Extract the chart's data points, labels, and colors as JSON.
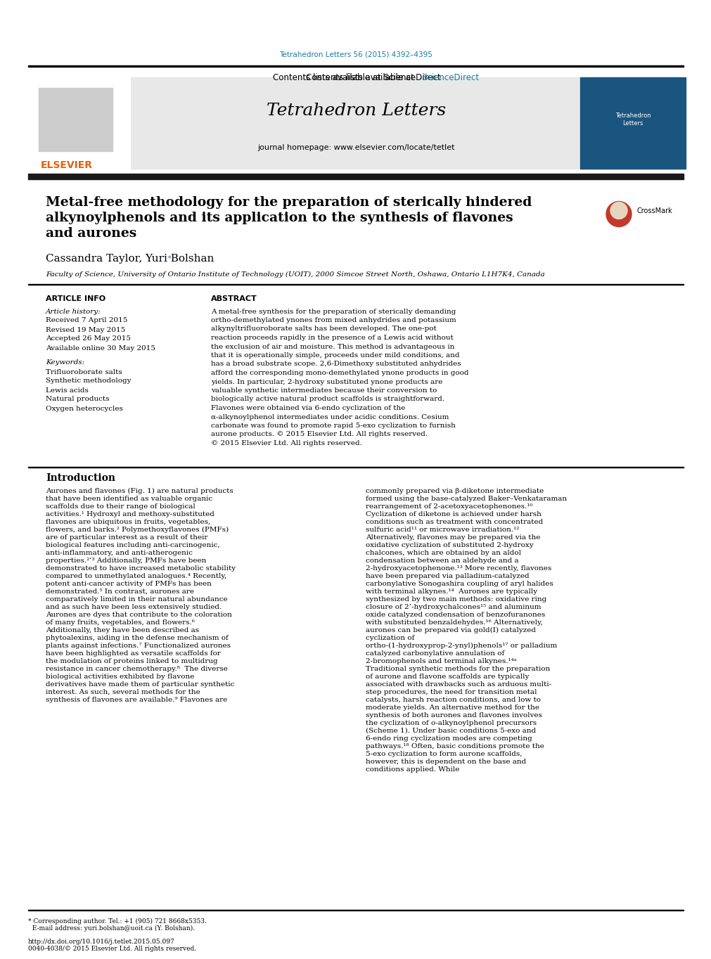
{
  "page_bg": "#ffffff",
  "top_citation": "Tetrahedron Letters 56 (2015) 4392–4395",
  "top_citation_color": "#1a7fa0",
  "header_bg": "#e8e8e8",
  "header_text": "Contents lists available at ",
  "sciencedirect_text": "ScienceDirect",
  "sciencedirect_color": "#1a7fa0",
  "journal_title": "Tetrahedron Letters",
  "journal_homepage": "journal homepage: www.elsevier.com/locate/tetlet",
  "elsevier_color": "#e8600a",
  "title_text": "Metal-free methodology for the preparation of sterically hindered\nalkynoylphenols and its application to the synthesis of flavones\nand aurones",
  "authors": "Cassandra Taylor, Yuri Bolshan",
  "affiliation": "Faculty of Science, University of Ontario Institute of Technology (UOIT), 2000 Simcoe Street North, Oshawa, Ontario L1H7K4, Canada",
  "article_info_header": "ARTICLE INFO",
  "abstract_header": "ABSTRACT",
  "article_info_content": "Article history:\nReceived 7 April 2015\nRevised 19 May 2015\nAccepted 26 May 2015\nAvailable online 30 May 2015\n\nKeywords:\nTrifluoroborate salts\nSynthetic methodology\nLewis acids\nNatural products\nOxygen heterocycles",
  "abstract_text": "A metal-free synthesis for the preparation of sterically demanding ortho-demethylated ynones from mixed anhydrides and potassium alkynyltrifluoroborate salts has been developed. The one-pot reaction proceeds rapidly in the presence of a Lewis acid without the exclusion of air and moisture. This method is advantageous in that it is operationally simple, proceeds under mild conditions, and has a broad substrate scope. 2,6-Dimethoxy substituted anhydrides afford the corresponding mono-demethylated ynone products in good yields. In particular, 2-hydroxy substituted ynone products are valuable synthetic intermediates because their conversion to biologically active natural product scaffolds is straightforward. Flavones were obtained via 6-endo cyclization of the α-alkynoylphenol intermediates under acidic conditions. Cesium carbonate was found to promote rapid 5-exo cyclization to furnish aurone products.\n© 2015 Elsevier Ltd. All rights reserved.",
  "intro_header": "Introduction",
  "intro_col1": "Aurones and flavones (Fig. 1) are natural products that have been identified as valuable organic scaffolds due to their range of biological activities.¹ Hydroxyl and methoxy-substituted flavones are ubiquitous in fruits, vegetables, flowers, and barks.² Polymethoxyflavones (PMFs) are of particular interest as a result of their biological features including anti-carcinogenic, anti-inflammatory, and anti-atherogenic properties.²’³ Additionally, PMFs have been demonstrated to have increased metabolic stability compared to unmethylated analogues.⁴ Recently, potent anti-cancer activity of PMFs has been demonstrated.⁵ In contrast, aurones are comparatively limited in their natural abundance and as such have been less extensively studied. Aurones are dyes that contribute to the coloration of many fruits, vegetables, and flowers.⁶ Additionally, they have been described as phytoalexins, aiding in the defense mechanism of plants against infections.⁷ Functionalized aurones have been highlighted as versatile scaffolds for the modulation of proteins linked to multidrug resistance in cancer chemotherapy.⁸\n\nThe diverse biological activities exhibited by flavone derivatives have made them of particular synthetic interest. As such, several methods for the synthesis of flavones are available.⁹ Flavones are",
  "intro_col2": "commonly prepared via β-diketone intermediate formed using the base-catalyzed Baker–Venkataraman rearrangement of 2-acetoxyacetophenones.¹⁰ Cyclization of diketone is achieved under harsh conditions such as treatment with concentrated sulfuric acid¹¹ or microwave irradiation.¹² Alternatively, flavones may be prepared via the oxidative cyclization of substituted 2-hydroxy chalcones, which are obtained by an aldol condensation between an aldehyde and a 2-hydroxyacetophenone.¹³ More recently, flavones have been prepared via palladium-catalyzed carbonylative Sonogashira coupling of aryl halides with terminal alkynes.¹⁴\n\nAurones are typically synthesized by two main methods: oxidative ring closure of 2’-hydroxychalcones¹⁵ and aluminum oxide catalyzed condensation of benzofuranones with substituted benzaldehydes.¹⁶ Alternatively, aurones can be prepared via gold(I) catalyzed cyclization of ortho-(1-hydroxyprop-2-ynyl)phenols¹⁷ or palladium catalyzed carbonylative annulation of 2-bromophenols and terminal alkynes.¹⁴ᵃ\n\nTraditional synthetic methods for the preparation of aurone and flavone scaffolds are typically associated with drawbacks such as arduous multi-step procedures, the need for transition metal catalysts, harsh reaction conditions, and low to moderate yields. An alternative method for the synthesis of both aurones and flavones involves the cyclization of o-alkynoylphenol precursors (Scheme 1). Under basic conditions 5-exo and 6-endo ring cyclization modes are competing pathways.¹⁸ Often, basic conditions promote the 5-exo cyclization to form aurone scaffolds, however, this is dependent on the base and conditions applied. While",
  "footer_text": "* Corresponding author. Tel.: +1 (905) 721 8668x5353.\n  E-mail address: yuri.bolshan@uoit.ca (Y. Bolshan).\n\nhttp://dx.doi.org/10.1016/j.tetlet.2015.05.097\n0040-4038/© 2015 Elsevier Ltd. All rights reserved."
}
